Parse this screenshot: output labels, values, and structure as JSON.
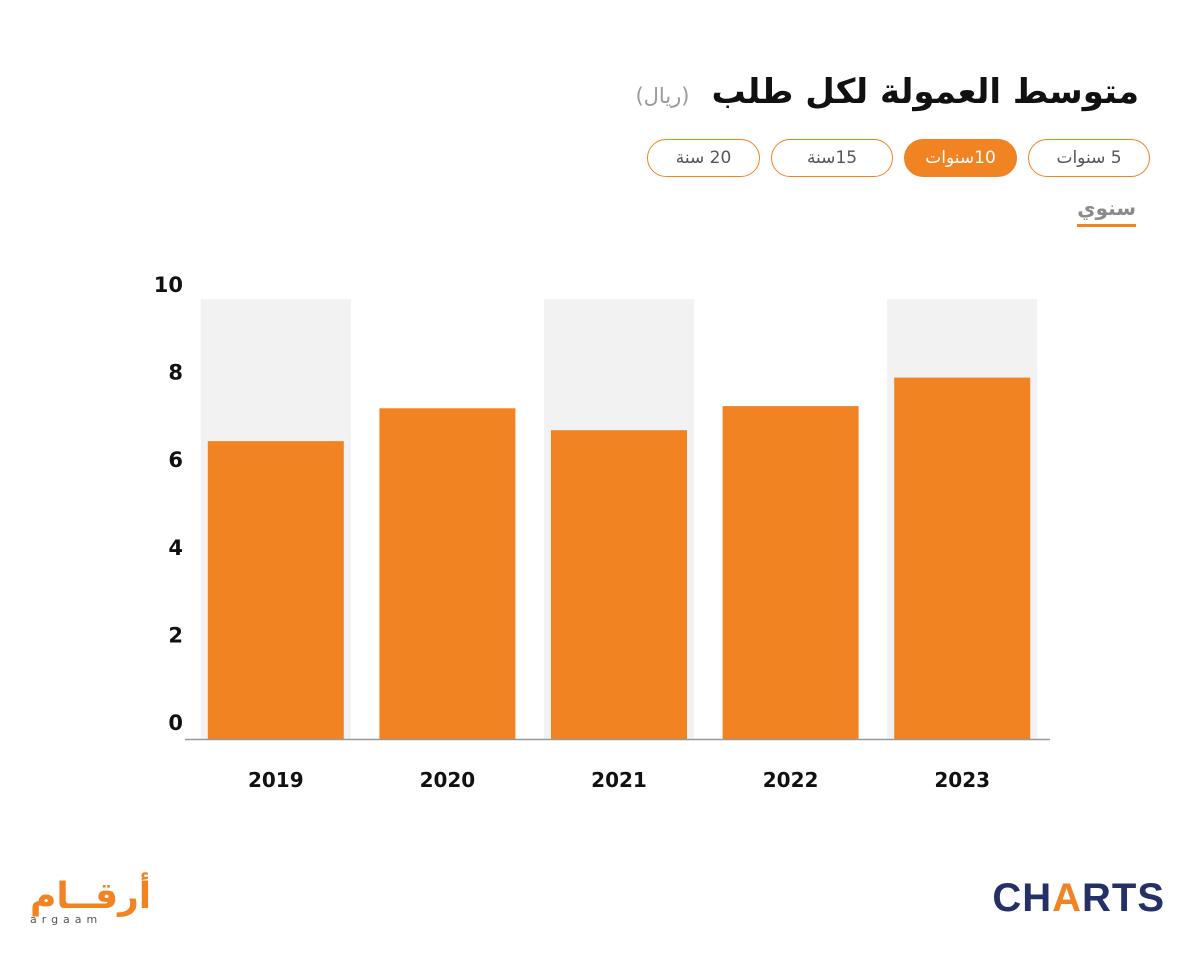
{
  "header": {
    "title": "متوسط العمولة لكل طلب",
    "unit": "(ريال)"
  },
  "range_tabs": [
    {
      "label": "5 سنوات",
      "active": false
    },
    {
      "label": "10سنوات",
      "active": true
    },
    {
      "label": "15سنة",
      "active": false
    },
    {
      "label": "20 سنة",
      "active": false
    }
  ],
  "period": {
    "label": "سنوي"
  },
  "colors": {
    "bar": "#f28322",
    "band": "#f2f2f2",
    "axis": "#999999",
    "text": "#111111"
  },
  "chart_data": {
    "type": "bar",
    "categories": [
      "2019",
      "2020",
      "2021",
      "2022",
      "2023"
    ],
    "values": [
      6.8,
      7.55,
      7.05,
      7.6,
      8.25
    ],
    "ylim": [
      0,
      10.25
    ],
    "yticks": [
      0,
      2,
      4,
      6,
      8,
      10
    ],
    "title": "",
    "xlabel": "",
    "ylabel": "",
    "grid": false,
    "alternating_bands": true
  },
  "logos": {
    "left_ar": "أرقــام",
    "left_en": "argaam",
    "right_pre": "CH",
    "right_bolt": "A",
    "right_post": "RTS"
  }
}
